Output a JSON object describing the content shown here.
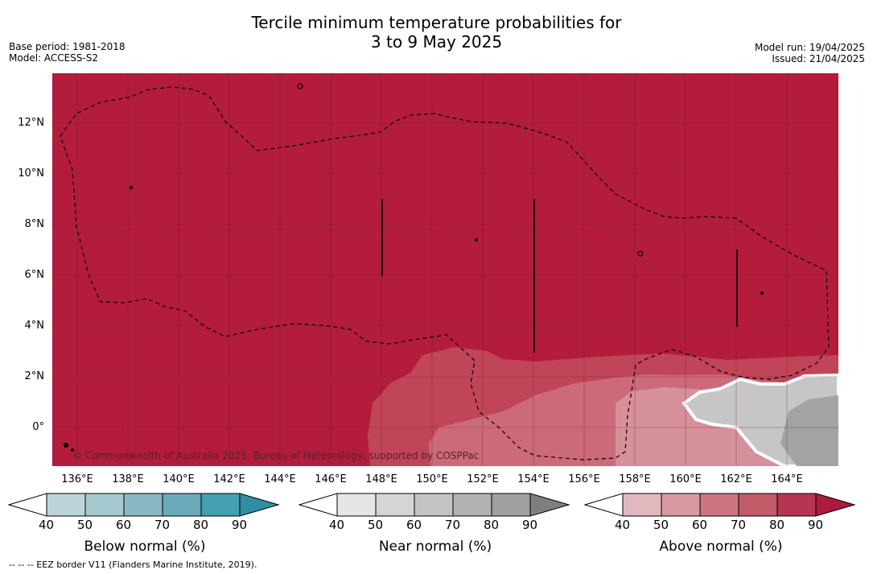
{
  "title_line1": "Tercile minimum temperature probabilities for",
  "title_line2": "3 to 9 May 2025",
  "base_period": "Base period: 1981-2018",
  "model": "Model: ACCESS-S2",
  "model_run": "Model run: 19/04/2025",
  "issued": "Issued: 21/04/2025",
  "copyright": "© Commonwealth of Australia 2025, Bureau of Meteorology, supported by COSPPac",
  "footnote": "--  --  -- EEZ border V11 (Flanders Marine Institute, 2019).",
  "lat_labels": [
    "12°N",
    "10°N",
    "8°N",
    "6°N",
    "4°N",
    "2°N",
    "0°"
  ],
  "lon_labels": [
    "136°E",
    "138°E",
    "140°E",
    "142°E",
    "144°E",
    "146°E",
    "148°E",
    "150°E",
    "152°E",
    "154°E",
    "156°E",
    "158°E",
    "160°E",
    "162°E",
    "164°E"
  ],
  "colorbars": [
    {
      "title": "Below normal (%)",
      "ticks": [
        "40",
        "50",
        "60",
        "70",
        "80",
        "90"
      ],
      "colors": [
        "#bdd3db",
        "#a6c8cf",
        "#8ab8c2",
        "#6aaab8",
        "#45a0b0",
        "#2e8fa3"
      ]
    },
    {
      "title": "Near normal (%)",
      "ticks": [
        "40",
        "50",
        "60",
        "70",
        "80",
        "90"
      ],
      "colors": [
        "#e6e6e6",
        "#d5d5d5",
        "#c4c4c4",
        "#b2b2b2",
        "#a0a0a0",
        "#7f7f7f"
      ]
    },
    {
      "title": "Above normal (%)",
      "ticks": [
        "40",
        "50",
        "60",
        "70",
        "80",
        "90"
      ],
      "colors": [
        "#e2b8bf",
        "#d89aa2",
        "#cc7580",
        "#c25a68",
        "#b73550",
        "#ac1b3c"
      ]
    }
  ],
  "colors": {
    "above_high": "#b31c3b",
    "above_mid": "#c04558",
    "above_low": "#cc6a78",
    "near_mid": "#c6c6c6",
    "near_high": "#a3a3a3"
  }
}
